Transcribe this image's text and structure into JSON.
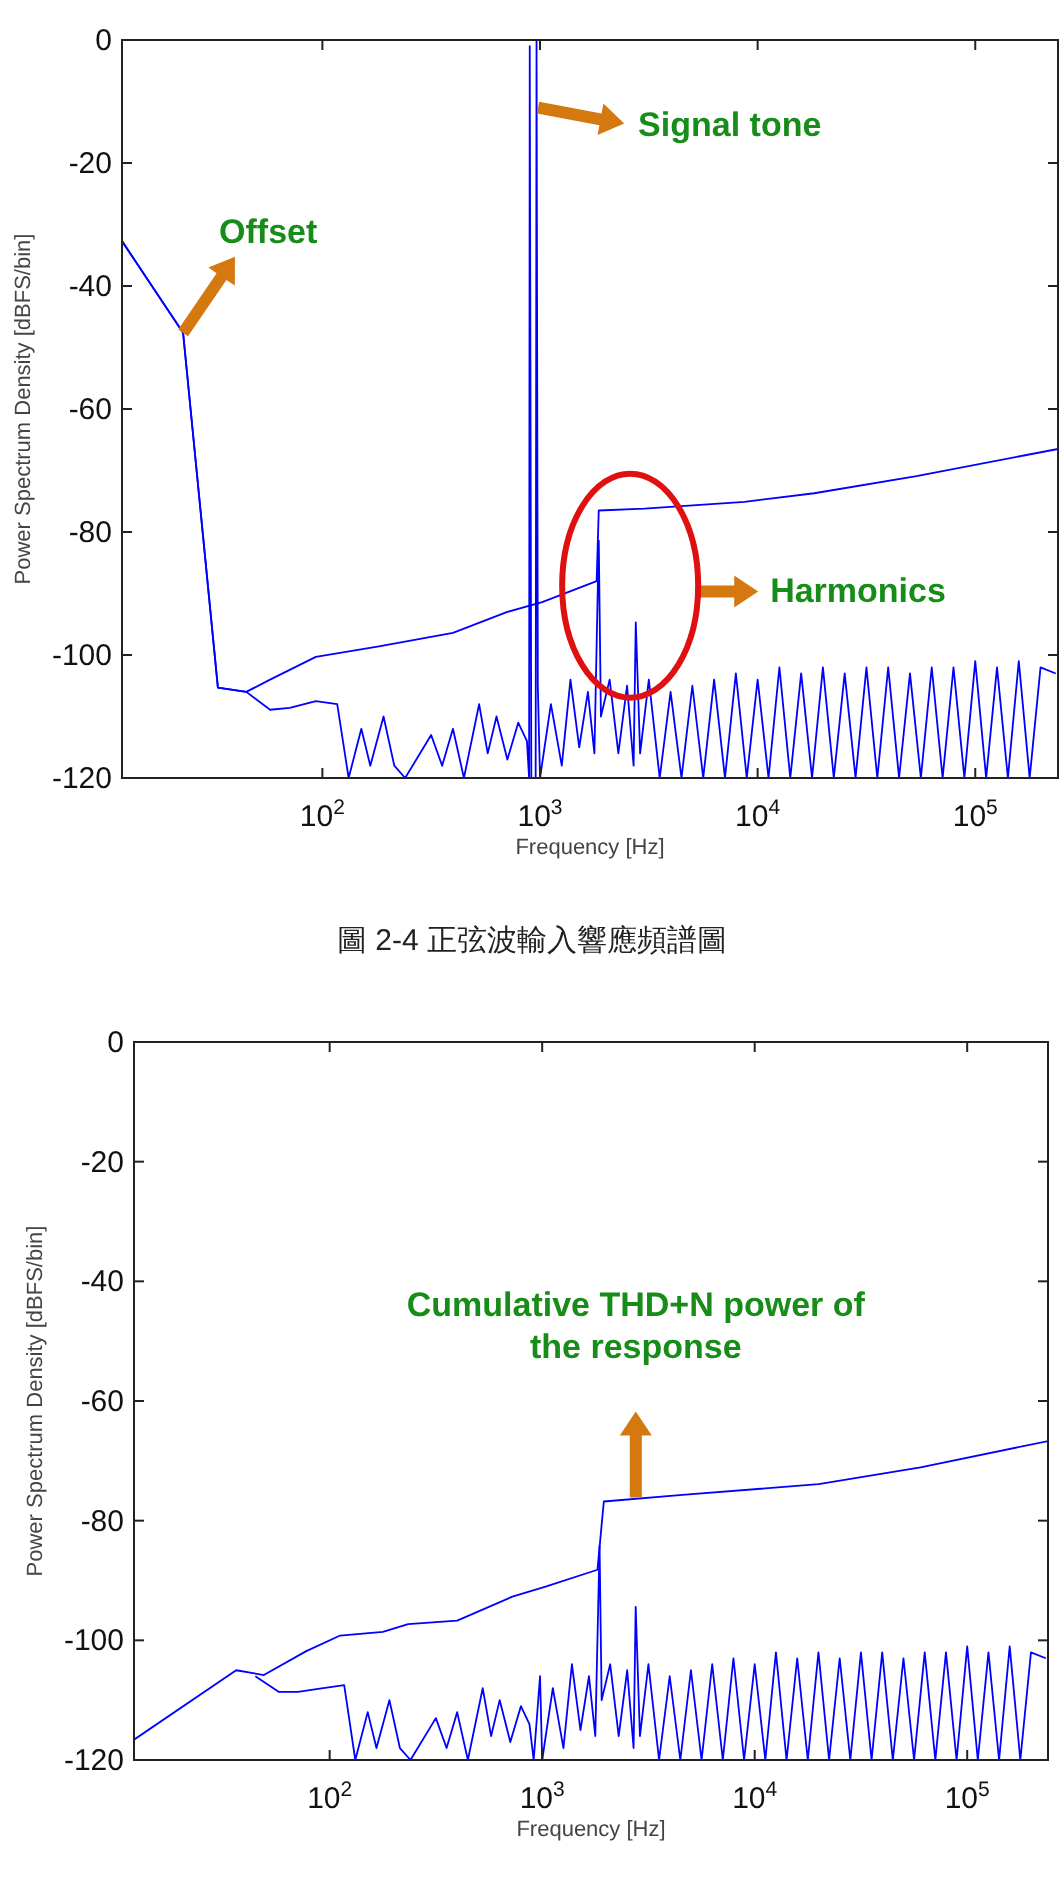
{
  "chart_data": [
    {
      "type": "line",
      "xlabel": "Frequency [Hz]",
      "ylabel": "Power Spectrum Density [dBFS/bin]",
      "log": "x",
      "grid": false,
      "xlim": [
        12,
        240000
      ],
      "ylim": [
        -120,
        0
      ],
      "xticks": [
        {
          "value": 100,
          "label": "10$^{2}$"
        },
        {
          "value": 1000,
          "label": "10$^{3}$"
        },
        {
          "value": 10000,
          "label": "10$^{4}$"
        },
        {
          "value": 100000,
          "label": "10$^{5}$"
        }
      ],
      "yticks": [
        0,
        -20,
        -40,
        -60,
        -80,
        -100,
        -120
      ],
      "series": [
        {
          "color": "#0000ff",
          "x": [
            12,
            22.9,
            33.1,
            44.7,
            57.5,
            93.3,
            182,
            398,
            708,
            1023,
            1820,
            1862,
            3020,
            8710,
            18200,
            53700,
            240000
          ],
          "values": [
            -32.7,
            -47.6,
            -105.3,
            -106,
            -104,
            -100.3,
            -98.6,
            -96.4,
            -93,
            -91.4,
            -88,
            -76.5,
            -76.2,
            -75.1,
            -73.7,
            -70.9,
            -66.5
          ]
        },
        {
          "color": "#0000ff",
          "x": [
            12,
            22.9,
            33.1,
            44.7,
            57.5,
            70.8,
            93.3,
            117,
            132,
            151,
            166,
            191,
            214,
            240,
            316,
            355,
            398,
            447,
            525,
            575,
            631,
            708,
            794,
            871,
            891,
            897,
            912,
            955,
            964,
            977,
            1000,
            1122,
            1259,
            1380,
            1514,
            1660,
            1778,
            1862,
            1905,
            2089,
            2291,
            2512,
            2692,
            2754,
            2884,
            3162,
            3548,
            3981,
            4467,
            5012,
            5623,
            6310,
            7079,
            7943,
            8913,
            10000,
            11220,
            12589,
            14125,
            15849,
            17783,
            19953,
            22387,
            25119,
            28184,
            31623,
            35481,
            39811,
            44668,
            50119,
            56234,
            63096,
            70795,
            79433,
            89125,
            100000,
            112202,
            125893,
            141254,
            158489,
            177828,
            199526,
            234423
          ],
          "values": [
            -32.7,
            -47.6,
            -105.3,
            -106,
            -108.9,
            -108.6,
            -107.5,
            -108,
            -120,
            -112,
            -118,
            -110,
            -118,
            -120,
            -113,
            -118,
            -112,
            -120,
            -108,
            -116,
            -110,
            -117,
            -111,
            -114,
            -120,
            -1,
            -120,
            -120,
            0,
            -105,
            -120,
            -108,
            -118,
            -104,
            -115,
            -106,
            -116,
            -81.4,
            -110,
            -104,
            -116,
            -105,
            -118,
            -94.7,
            -116,
            -104,
            -120,
            -106,
            -120,
            -105,
            -120,
            -104,
            -120,
            -103,
            -120,
            -104,
            -120,
            -102,
            -120,
            -103,
            -120,
            -102,
            -120,
            -103,
            -120,
            -102,
            -120,
            -102,
            -120,
            -103,
            -120,
            -102,
            -120,
            -102,
            -120,
            -101,
            -120,
            -102,
            -120,
            -101,
            -120,
            -102,
            -103
          ]
        }
      ],
      "annotations": [
        {
          "text": "Offset",
          "x": 22.9,
          "y": -47.6
        },
        {
          "text": "Signal tone",
          "x": 980,
          "y": -11
        },
        "Harmonics",
        "圖 2-4 正弦波輸入響應頻譜圖"
      ]
    },
    {
      "type": "line",
      "xlabel": "Frequency [Hz]",
      "ylabel": "Power Spectrum Density [dBFS/bin]",
      "log": "x",
      "grid": false,
      "xlim": [
        12,
        240000
      ],
      "ylim": [
        -120,
        0
      ],
      "xticks": [
        {
          "value": 100,
          "label": "10$^{2}$"
        },
        {
          "value": 1000,
          "label": "10$^{3}$"
        },
        {
          "value": 10000,
          "label": "10$^{4}$"
        },
        {
          "value": 100000,
          "label": "10$^{5}$"
        }
      ],
      "yticks": [
        0,
        -20,
        -40,
        -60,
        -80,
        -100,
        -120
      ],
      "series": [
        {
          "color": "#0000ff",
          "x": [
            12,
            36.3,
            49,
            77.6,
            112,
            178,
            234,
            398,
            724,
            1047,
            1820,
            1950,
            4570,
            20000,
            60300,
            240000
          ],
          "values": [
            -116.6,
            -105,
            -105.8,
            -101.8,
            -99.2,
            -98.6,
            -97.3,
            -96.7,
            -92.7,
            -91,
            -88.2,
            -76.8,
            -75.7,
            -73.9,
            -71.1,
            -66.7
          ]
        },
        {
          "color": "#0000ff",
          "x": [
            44.7,
            57.5,
            70.8,
            93.3,
            117,
            132,
            151,
            166,
            191,
            214,
            240,
            316,
            355,
            398,
            447,
            525,
            575,
            631,
            708,
            794,
            871,
            912,
            977,
            1000,
            1122,
            1259,
            1380,
            1514,
            1660,
            1778,
            1862,
            1905,
            2089,
            2291,
            2512,
            2692,
            2754,
            2884,
            3162,
            3548,
            3981,
            4467,
            5012,
            5623,
            6310,
            7079,
            7943,
            8913,
            10000,
            11220,
            12589,
            14125,
            15849,
            17783,
            19953,
            22387,
            25119,
            28184,
            31623,
            35481,
            39811,
            44668,
            50119,
            56234,
            63096,
            70795,
            79433,
            89125,
            100000,
            112202,
            125893,
            141254,
            158489,
            177828,
            199526,
            234423
          ],
          "values": [
            -106,
            -108.6,
            -108.6,
            -108,
            -107.5,
            -120,
            -112,
            -118,
            -110,
            -118,
            -120,
            -113,
            -118,
            -112,
            -120,
            -108,
            -116,
            -110,
            -117,
            -111,
            -114,
            -120,
            -106,
            -120,
            -108,
            -118,
            -104,
            -115,
            -106,
            -116,
            -84.2,
            -110,
            -104,
            -116,
            -105,
            -118,
            -94.4,
            -116,
            -104,
            -120,
            -106,
            -120,
            -105,
            -120,
            -104,
            -120,
            -103,
            -120,
            -104,
            -120,
            -102,
            -120,
            -103,
            -120,
            -102,
            -120,
            -103,
            -120,
            -102,
            -120,
            -102,
            -120,
            -103,
            -120,
            -102,
            -120,
            -102,
            -120,
            -101,
            -120,
            -102,
            -120,
            -101,
            -120,
            -102,
            -103
          ]
        }
      ],
      "annotations": [
        "Cumulative THD+N power of the response"
      ]
    }
  ]
}
